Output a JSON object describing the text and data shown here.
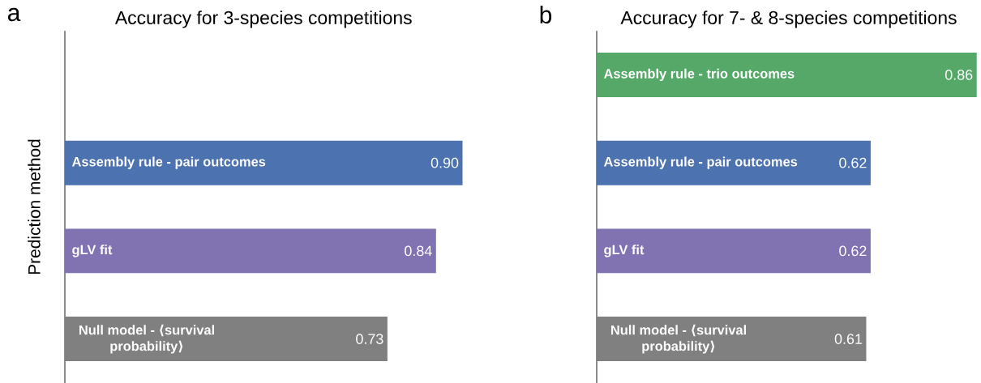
{
  "chart_data": [
    {
      "type": "bar",
      "orientation": "horizontal",
      "title": "Accuracy for 3-species competitions",
      "ylabel": "Prediction method",
      "annotations": [
        "a"
      ],
      "categories": [
        null,
        "Assembly rule - pair outcomes",
        "gLV fit",
        "Null model - ⟨survival probability⟩"
      ],
      "values": [
        null,
        0.9,
        0.84,
        0.73
      ],
      "value_labels": [
        null,
        "0.90",
        "0.84",
        "0.73"
      ],
      "colors": [
        "#55a868",
        "#4c72b0",
        "#8172b2",
        "#808080"
      ],
      "tick_labels": false
    },
    {
      "type": "bar",
      "orientation": "horizontal",
      "title": "Accuracy for 7- & 8-species competitions",
      "annotations": [
        "b"
      ],
      "categories": [
        "Assembly rule - trio outcomes",
        "Assembly rule - pair outcomes",
        "gLV fit",
        "Null model - ⟨survival probability⟩"
      ],
      "values": [
        0.86,
        0.62,
        0.62,
        0.61
      ],
      "value_labels": [
        "0.86",
        "0.62",
        "0.62",
        "0.61"
      ],
      "colors": [
        "#55a868",
        "#4c72b0",
        "#8172b2",
        "#808080"
      ],
      "tick_labels": false
    }
  ]
}
